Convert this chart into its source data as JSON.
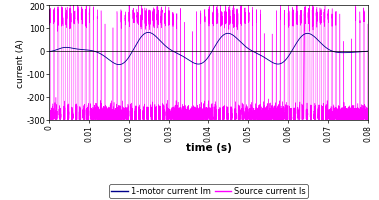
{
  "title": "",
  "xlabel": "time (s)",
  "ylabel": "current (A)",
  "xlim": [
    0,
    0.08
  ],
  "ylim": [
    -300,
    200
  ],
  "yticks": [
    -300,
    -200,
    -100,
    0,
    100,
    200
  ],
  "xticks": [
    0.0,
    0.01,
    0.02,
    0.03,
    0.04,
    0.05,
    0.06,
    0.07,
    0.08
  ],
  "motor_color": "#00008B",
  "source_color": "#FF00FF",
  "legend_motor": "1-motor current Im",
  "legend_source": "Source current Is",
  "background_color": "#FFFFFF"
}
